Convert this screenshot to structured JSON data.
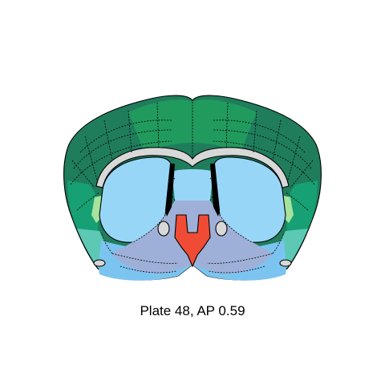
{
  "caption": {
    "plate_label": "Plate 48, AP 0.59"
  },
  "colors": {
    "cortex_dark": "#1f7d5c",
    "cortex_mid": "#219a5e",
    "cortex_teal": "#17a074",
    "cortex_light_teal": "#5dc8b4",
    "cortex_pale_green": "#a6e39c",
    "striatum_light_blue": "#98d6f7",
    "striatum_mid_blue": "#7cc4f0",
    "ventral_lavender": "#9fb0d8",
    "septum_red": "#f04c35",
    "white_matter_gray": "#d8d8d8",
    "ventricle_black": "#000000"
  }
}
